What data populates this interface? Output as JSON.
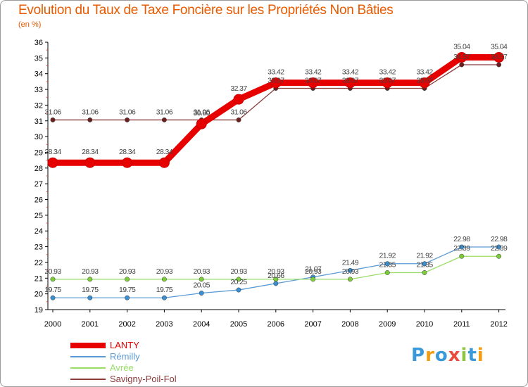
{
  "title": "Evolution du Taux de Taxe Foncière sur les Propriétés Non Bâties",
  "subtitle": "(en %)",
  "logo": {
    "letters": [
      "P",
      "r",
      "o",
      "x",
      "i",
      "t",
      "i"
    ],
    "colors": [
      "#3a9ad9",
      "#f39c12",
      "#3a9ad9",
      "#e74c3c",
      "#8cc63f",
      "#3a9ad9",
      "#f39c12"
    ]
  },
  "chart_data": {
    "type": "line",
    "categories": [
      "2000",
      "2001",
      "2002",
      "2003",
      "2004",
      "2005",
      "2006",
      "2007",
      "2008",
      "2009",
      "2010",
      "2011",
      "2012"
    ],
    "ylim": [
      19,
      36
    ],
    "yticks": [
      19,
      20,
      21,
      22,
      23,
      24,
      25,
      26,
      27,
      28,
      29,
      30,
      31,
      32,
      33,
      34,
      35,
      36
    ],
    "grid": false,
    "series": [
      {
        "name": "LANTY",
        "color": "#e60000",
        "marker": "#e60000",
        "values": [
          28.34,
          28.34,
          28.34,
          28.34,
          30.8,
          32.37,
          33.42,
          33.42,
          33.42,
          33.42,
          33.42,
          35.04,
          35.04
        ],
        "labels": [
          "28.34",
          "28.34",
          "28.34",
          "28.34",
          "30.80",
          "32.37",
          "33.42",
          "33.42",
          "33.42",
          "33.42",
          "33.42",
          "35.04",
          "35.04"
        ]
      },
      {
        "name": "Rémilly",
        "color": "#5b9bd5",
        "marker": "#3a8fd0",
        "values": [
          19.75,
          19.75,
          19.75,
          19.75,
          20.05,
          20.25,
          20.66,
          21.07,
          21.49,
          21.92,
          21.92,
          22.98,
          22.98
        ],
        "labels": [
          "19.75",
          "19.75",
          "19.75",
          "19.75",
          "20.05",
          "20.25",
          "20.66",
          "21.07",
          "21.49",
          "21.92",
          "21.92",
          "22.98",
          "22.98"
        ]
      },
      {
        "name": "Avrée",
        "color": "#99dd66",
        "marker": "#7ccc3c",
        "values": [
          20.93,
          20.93,
          20.93,
          20.93,
          20.93,
          20.93,
          20.93,
          20.93,
          20.93,
          21.35,
          21.35,
          22.39,
          22.39
        ],
        "labels": [
          "20.93",
          "20.93",
          "20.93",
          "20.93",
          "20.93",
          "20.93",
          "20.93",
          "20.93",
          "20.93",
          "21.35",
          "21.35",
          "22.39",
          "22.39"
        ]
      },
      {
        "name": "Savigny-Poil-Fol",
        "color": "#8b3a3a",
        "marker": "#6b1f1f",
        "values": [
          31.06,
          31.06,
          31.06,
          31.06,
          31.06,
          31.06,
          33.07,
          33.07,
          33.07,
          33.07,
          33.07,
          34.57,
          34.57
        ],
        "labels": [
          "31.06",
          "31.06",
          "31.06",
          "31.06",
          "31.06",
          "31.06",
          "33.07",
          "33.07",
          "33.07",
          "33.07",
          "33.07",
          "34.57",
          "34.57"
        ]
      }
    ]
  }
}
